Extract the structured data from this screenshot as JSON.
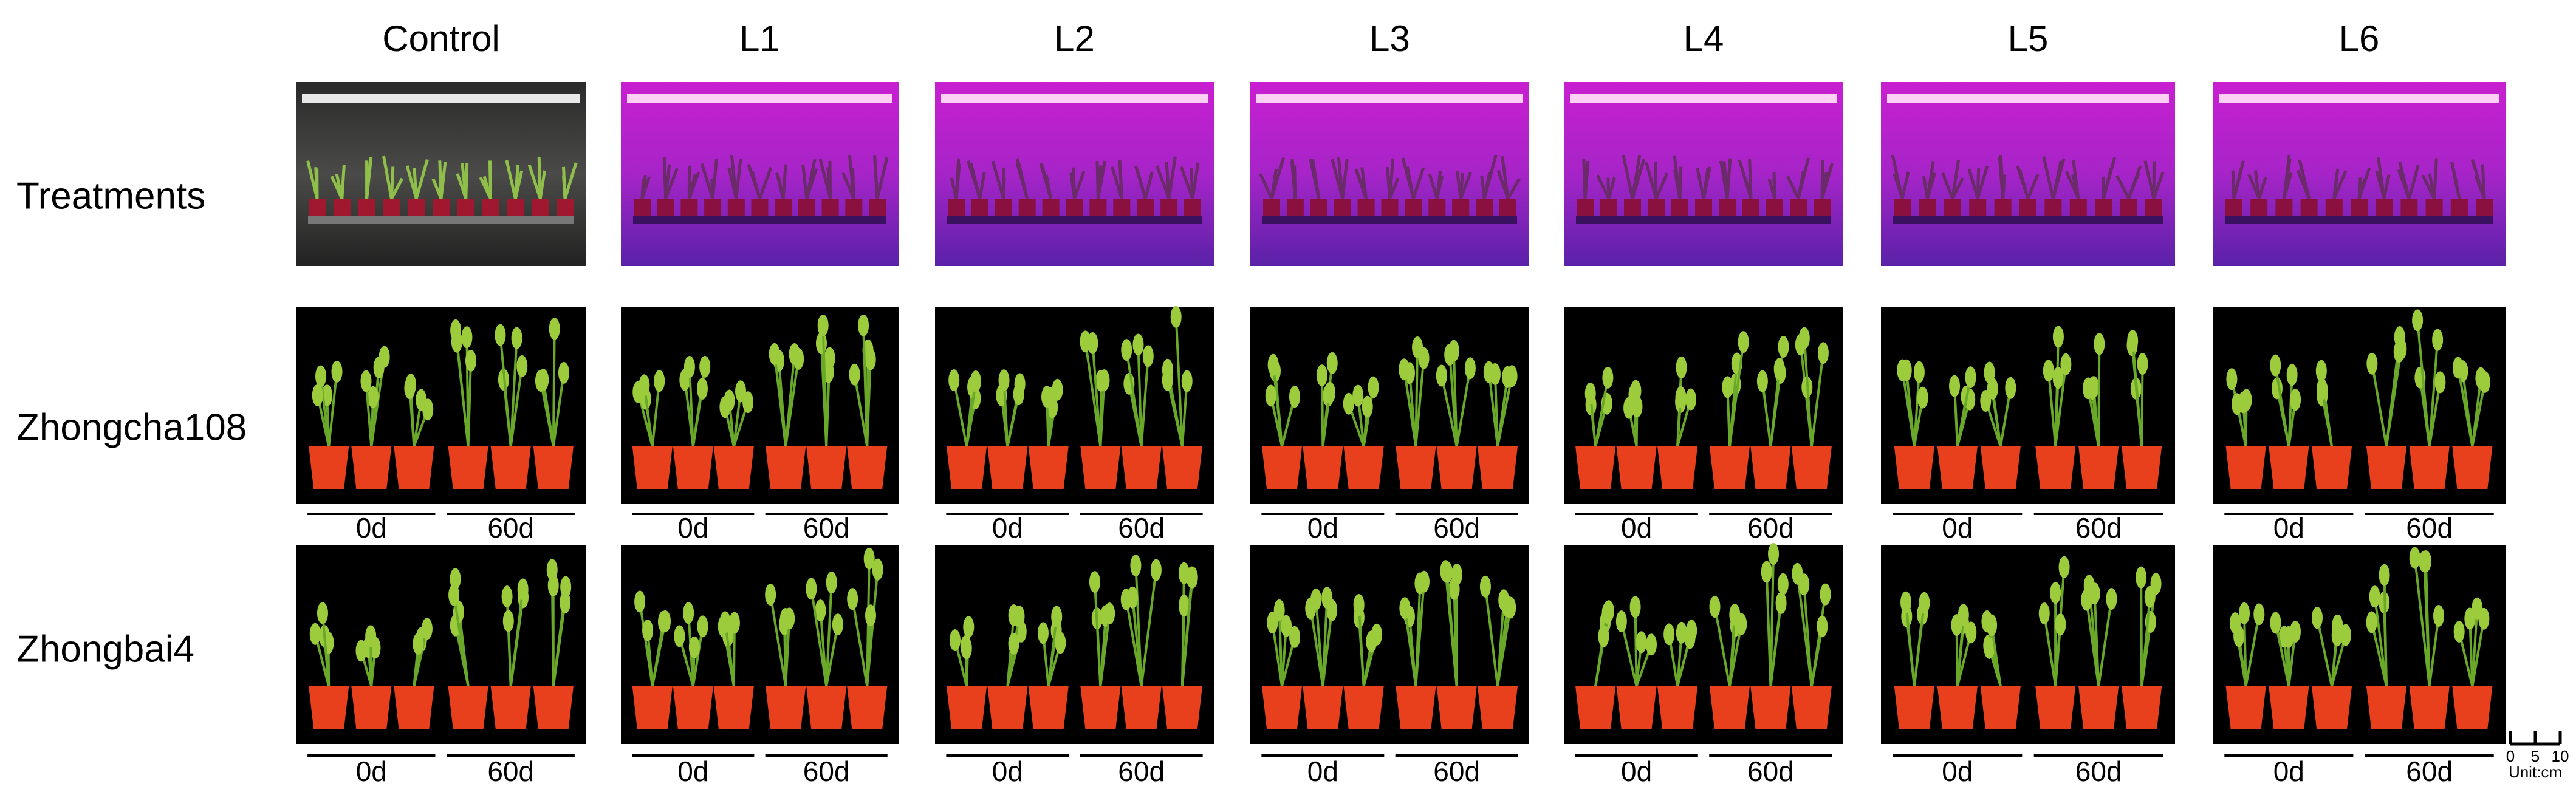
{
  "columns": [
    "Control",
    "L1",
    "L2",
    "L3",
    "L4",
    "L5",
    "L6"
  ],
  "rows": [
    "Treatments",
    "Zhongcha108",
    "Zhongbai4"
  ],
  "day_labels": [
    "0d",
    "60d"
  ],
  "scale_bar": {
    "ticks": [
      0,
      5,
      10
    ],
    "unit": "Unit:cm"
  }
}
